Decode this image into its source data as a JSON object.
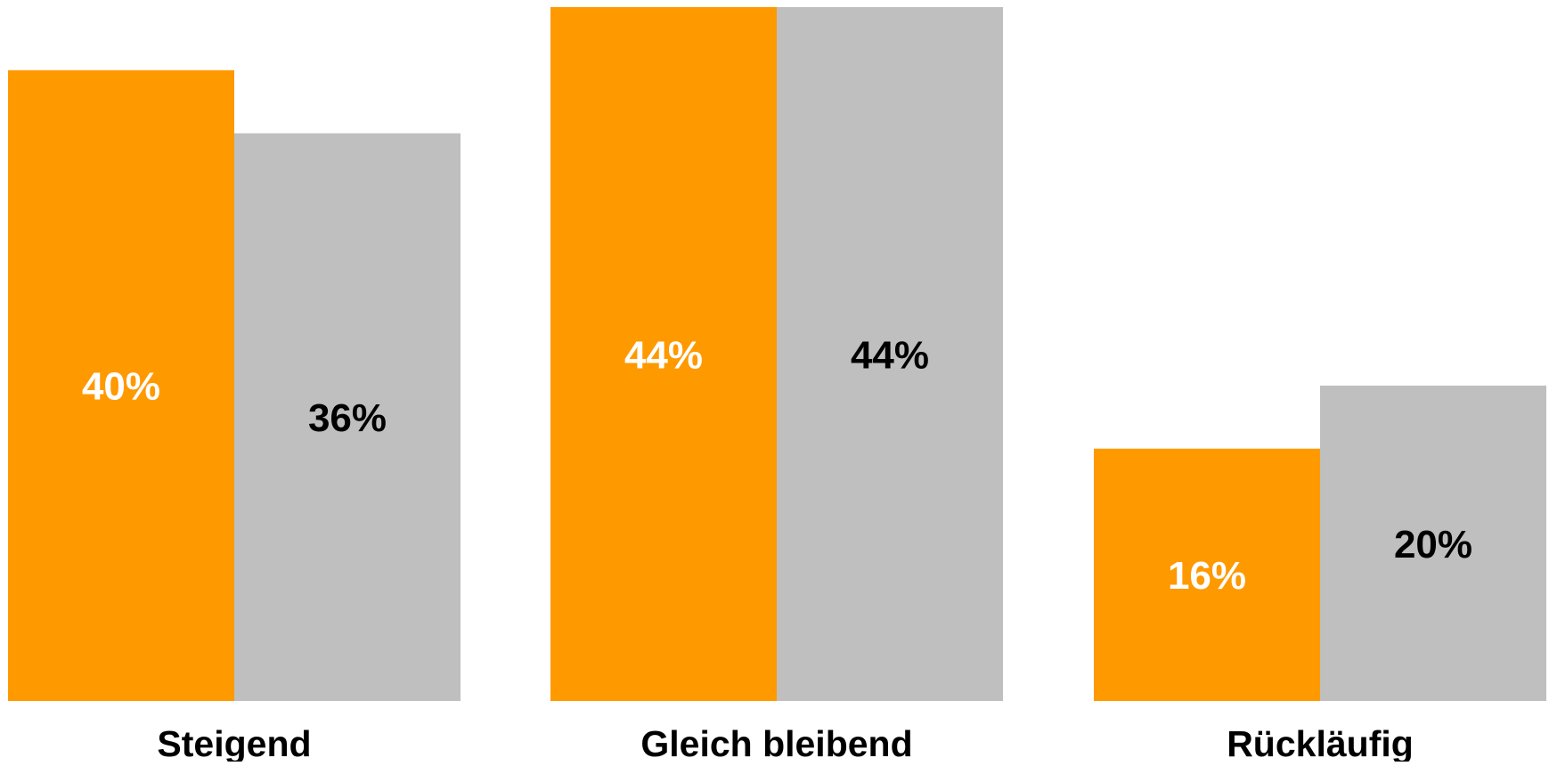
{
  "chart_data": {
    "type": "bar",
    "title": "",
    "xlabel": "",
    "ylabel": "",
    "categories": [
      "Steigend",
      "Gleich bleibend",
      "Rückläufig"
    ],
    "series": [
      {
        "values": [
          40,
          44,
          16
        ],
        "labels": [
          "40%",
          "44%",
          "16%"
        ],
        "color": "#FF9900",
        "label_color": "#FFFFFF"
      },
      {
        "values": [
          36,
          44,
          20
        ],
        "labels": [
          "36%",
          "44%",
          "20%"
        ],
        "color": "#BFBFBF",
        "label_color": "#000000"
      }
    ],
    "ylim": [
      0,
      44
    ],
    "grid": false,
    "legend": "none",
    "data_label_position": "center"
  }
}
